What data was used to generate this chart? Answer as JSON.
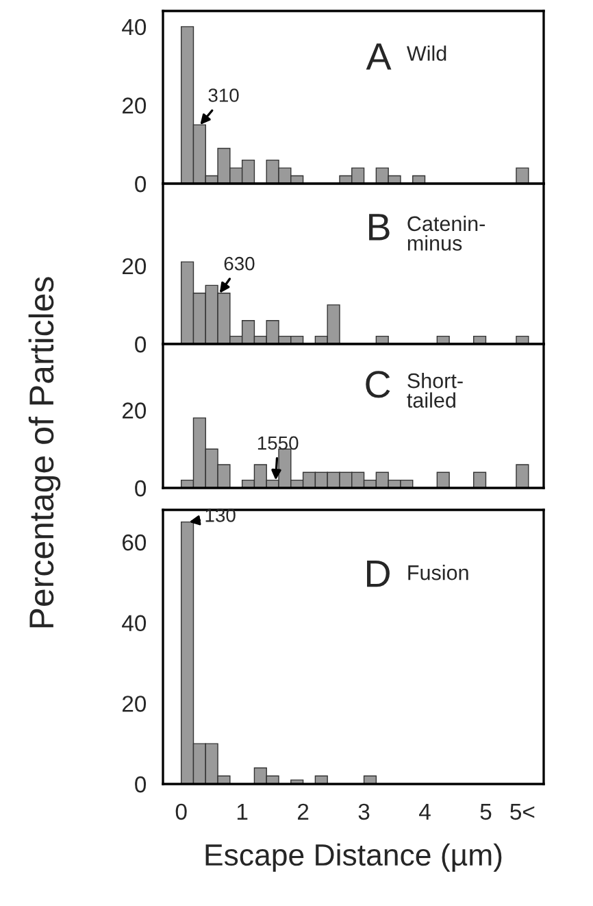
{
  "chart_data": [
    {
      "type": "histogram",
      "title": "A",
      "subtitle": "Wild",
      "ylabel": "Percentage of Particles",
      "color": "#9a9a9a",
      "bins": [
        0,
        0.2,
        0.4,
        0.6,
        0.8,
        1.0,
        1.2,
        1.4,
        1.6,
        1.8,
        2.0,
        2.6,
        2.8,
        3.0,
        3.2,
        3.4,
        3.6,
        3.8,
        4.0,
        5.5,
        5.7
      ],
      "values": [
        40,
        15,
        2,
        9,
        4,
        6,
        null,
        6,
        4,
        2,
        null,
        2,
        4,
        null,
        4,
        2,
        null,
        2,
        null,
        4
      ],
      "xlim": [
        -0.3,
        5.95
      ],
      "ylim": [
        0,
        44
      ],
      "yticks": [
        0,
        20,
        40
      ],
      "tick_labels": "y",
      "annotations": [
        {
          "text": "310",
          "x": 0.31,
          "y": 15
        }
      ]
    },
    {
      "type": "histogram",
      "title": "B",
      "subtitle": "Catenin-\nminus",
      "color": "#9a9a9a",
      "bins": [
        0,
        0.2,
        0.4,
        0.6,
        0.8,
        1.0,
        1.2,
        1.4,
        1.6,
        1.8,
        2.0,
        2.2,
        2.4,
        2.6,
        3.2,
        3.4,
        4.2,
        4.4,
        4.8,
        5.0,
        5.5,
        5.7
      ],
      "values": [
        21,
        13,
        15,
        13,
        2,
        6,
        2,
        6,
        2,
        2,
        null,
        2,
        10,
        null,
        2,
        null,
        2,
        null,
        2,
        null,
        2
      ],
      "xlim": [
        -0.3,
        5.95
      ],
      "ylim": [
        0,
        41
      ],
      "yticks": [
        0,
        20
      ],
      "tick_labels": "y",
      "annotations": [
        {
          "text": "630",
          "x": 0.63,
          "y": 13
        }
      ]
    },
    {
      "type": "histogram",
      "title": "C",
      "subtitle": "Short-\ntailed",
      "color": "#9a9a9a",
      "bins": [
        0,
        0.2,
        0.4,
        0.6,
        0.8,
        1.0,
        1.2,
        1.4,
        1.6,
        1.8,
        2.0,
        2.2,
        2.4,
        2.6,
        2.8,
        3.0,
        3.2,
        3.4,
        3.6,
        3.8,
        4.2,
        4.4,
        4.8,
        5.0,
        5.5,
        5.7
      ],
      "values": [
        2,
        18,
        10,
        6,
        null,
        2,
        6,
        2,
        10,
        2,
        4,
        4,
        4,
        4,
        4,
        2,
        4,
        2,
        2,
        null,
        4,
        null,
        4,
        null,
        6
      ],
      "xlim": [
        -0.3,
        5.95
      ],
      "ylim": [
        0,
        37
      ],
      "yticks": [
        0,
        20
      ],
      "tick_labels": "y",
      "annotations": [
        {
          "text": "1550",
          "x": 1.55,
          "y": 2
        }
      ]
    },
    {
      "type": "histogram",
      "title": "D",
      "subtitle": "Fusion",
      "xlabel": "Escape Distance (µm)",
      "color": "#9a9a9a",
      "bins": [
        0,
        0.2,
        0.4,
        0.6,
        0.8,
        1.2,
        1.4,
        1.6,
        1.8,
        2.0,
        2.2,
        2.4,
        3.0,
        3.2
      ],
      "values": [
        65,
        10,
        10,
        2,
        null,
        4,
        2,
        null,
        1,
        null,
        2,
        null,
        2
      ],
      "xlim": [
        -0.3,
        5.95
      ],
      "ylim": [
        0,
        68
      ],
      "xticks": [
        0,
        1,
        2,
        3,
        4,
        5,
        {
          "value": 5.6,
          "label": "5<"
        }
      ],
      "yticks": [
        0,
        20,
        40,
        60
      ],
      "annotations": [
        {
          "text": "130",
          "x": 0.13,
          "y": 65
        }
      ]
    }
  ]
}
